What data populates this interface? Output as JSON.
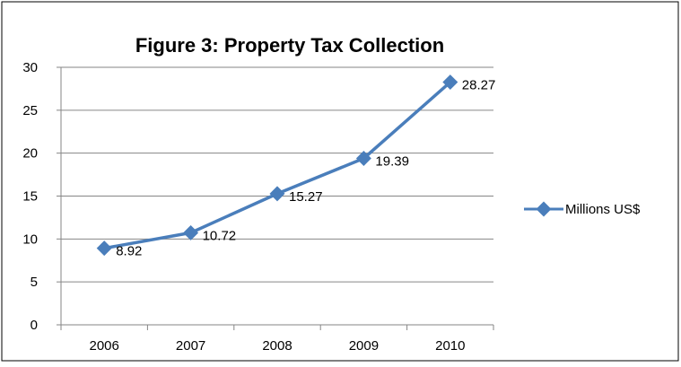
{
  "chart_data": {
    "type": "line",
    "title": "Figure 3: Property Tax Collection",
    "xlabel": "",
    "ylabel": "",
    "categories": [
      "2006",
      "2007",
      "2008",
      "2009",
      "2010"
    ],
    "series": [
      {
        "name": "Millions US$",
        "values": [
          8.92,
          10.72,
          15.27,
          19.39,
          28.27
        ],
        "data_labels": [
          "8.92",
          "10.72",
          "15.27",
          "19.39",
          "28.27"
        ],
        "color": "#4a7ebb"
      }
    ],
    "ylim": [
      0,
      30
    ],
    "yticks": [
      "0",
      "5",
      "10",
      "15",
      "20",
      "25",
      "30"
    ],
    "grid": true,
    "legend_position": "right"
  }
}
